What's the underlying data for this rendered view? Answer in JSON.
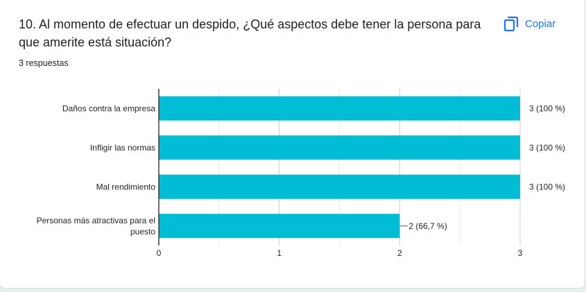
{
  "question": {
    "title": "10. Al momento de efectuar un despido, ¿Qué aspectos debe tener la persona para que amerite está situación?",
    "responses": "3 respuestas"
  },
  "copy_button": {
    "label": "Copiar",
    "icon": "copy-icon"
  },
  "colors": {
    "bar": "#00bcd4",
    "accent": "#1a73e8"
  },
  "chart_data": {
    "type": "bar",
    "orientation": "horizontal",
    "categories": [
      "Daños contra la empresa",
      "Infligir las normas",
      "Mal rendimiento",
      "Personas más atractivas para el puesto"
    ],
    "category_lines": [
      [
        "Daños contra la empresa"
      ],
      [
        "Infligir las normas"
      ],
      [
        "Mal rendimiento"
      ],
      [
        "Personas más atractivas para el",
        "puesto"
      ]
    ],
    "values": [
      3,
      3,
      3,
      2
    ],
    "data_labels": [
      "3 (100 %)",
      "3 (100 %)",
      "3 (100 %)",
      "2 (66,7 %)"
    ],
    "xlim": [
      0,
      3
    ],
    "xticks": [
      "0",
      "1",
      "2",
      "3"
    ],
    "grid": true,
    "title": "",
    "xlabel": "",
    "ylabel": ""
  }
}
